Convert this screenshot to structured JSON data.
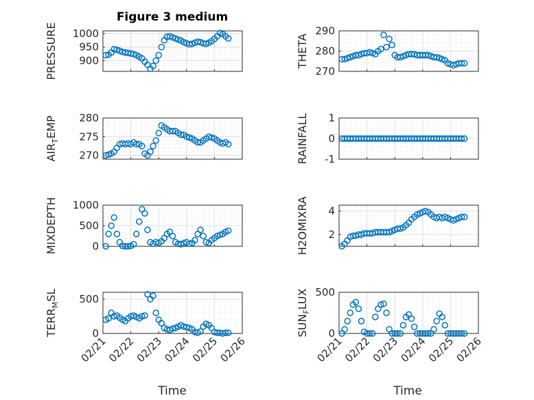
{
  "figure": {
    "title": "Figure 3 medium",
    "x_axis_label": "Time",
    "x_tick_labels": [
      "02/21",
      "02/22",
      "02/23",
      "02/24",
      "02/25",
      "02/26"
    ],
    "marker_color": "#0072BD",
    "grid": true
  },
  "chart_data": [
    {
      "type": "scatter",
      "title": "Figure 3 medium",
      "ylabel": "PRESSURE",
      "ylim": [
        860,
        1010
      ],
      "yticks": [
        900,
        950,
        1000
      ],
      "xlim": [
        0,
        5
      ],
      "x": [
        0.1,
        0.2,
        0.3,
        0.4,
        0.5,
        0.6,
        0.7,
        0.8,
        0.9,
        1.0,
        1.1,
        1.2,
        1.3,
        1.4,
        1.5,
        1.6,
        1.7,
        1.8,
        1.9,
        2.0,
        2.1,
        2.2,
        2.3,
        2.4,
        2.5,
        2.6,
        2.7,
        2.8,
        2.9,
        3.0,
        3.1,
        3.2,
        3.3,
        3.4,
        3.5,
        3.6,
        3.7,
        3.8,
        3.9,
        4.0,
        4.1,
        4.2,
        4.3,
        4.4,
        4.5
      ],
      "y": [
        920,
        922,
        930,
        942,
        940,
        936,
        932,
        930,
        928,
        926,
        924,
        920,
        914,
        908,
        896,
        884,
        870,
        880,
        900,
        920,
        950,
        975,
        988,
        990,
        986,
        982,
        978,
        974,
        968,
        964,
        960,
        962,
        966,
        970,
        968,
        964,
        962,
        966,
        972,
        980,
        990,
        1002,
        998,
        990,
        982
      ]
    },
    {
      "type": "scatter",
      "title": "",
      "ylabel": "THETA",
      "ylim": [
        270,
        290
      ],
      "yticks": [
        270,
        280,
        290
      ],
      "xlim": [
        0,
        5
      ],
      "x": [
        0.1,
        0.2,
        0.3,
        0.4,
        0.5,
        0.6,
        0.7,
        0.8,
        0.9,
        1.0,
        1.1,
        1.2,
        1.3,
        1.4,
        1.5,
        1.6,
        1.7,
        1.8,
        1.9,
        2.0,
        2.1,
        2.2,
        2.3,
        2.4,
        2.5,
        2.6,
        2.7,
        2.8,
        2.9,
        3.0,
        3.1,
        3.2,
        3.3,
        3.4,
        3.5,
        3.6,
        3.7,
        3.8,
        3.9,
        4.0,
        4.1,
        4.2,
        4.3,
        4.4,
        4.5
      ],
      "y": [
        276,
        276,
        276.5,
        277,
        277.5,
        278,
        278,
        278.5,
        279,
        279,
        279.5,
        279,
        278.5,
        280,
        281,
        288,
        282,
        286,
        283,
        278,
        277,
        277,
        277.5,
        278,
        278.5,
        278.5,
        278.5,
        278,
        278,
        278,
        278,
        278,
        277.5,
        277,
        277,
        276.5,
        276,
        275.5,
        274,
        273.5,
        273,
        273.5,
        274,
        274,
        274
      ]
    },
    {
      "type": "scatter",
      "title": "",
      "ylabel": "AIR_TEMP",
      "ylim": [
        269,
        280
      ],
      "yticks": [
        270,
        275,
        280
      ],
      "xlim": [
        0,
        5
      ],
      "x": [
        0.1,
        0.2,
        0.3,
        0.4,
        0.5,
        0.6,
        0.7,
        0.8,
        0.9,
        1.0,
        1.1,
        1.2,
        1.3,
        1.4,
        1.5,
        1.6,
        1.7,
        1.8,
        1.9,
        2.0,
        2.1,
        2.2,
        2.3,
        2.4,
        2.5,
        2.6,
        2.7,
        2.8,
        2.9,
        3.0,
        3.1,
        3.2,
        3.3,
        3.4,
        3.5,
        3.6,
        3.7,
        3.8,
        3.9,
        4.0,
        4.1,
        4.2,
        4.3,
        4.4,
        4.5
      ],
      "y": [
        270,
        270.2,
        270.5,
        271,
        272,
        273,
        273.2,
        273,
        273.2,
        273,
        273.5,
        273,
        273,
        272.5,
        270.5,
        270,
        271,
        272.5,
        274,
        276,
        278,
        277.5,
        277,
        276.5,
        276.5,
        276.5,
        276,
        275.5,
        275.5,
        275,
        274.8,
        274.5,
        274,
        273.5,
        273.5,
        274,
        274.5,
        275,
        274.8,
        274.5,
        274,
        273.5,
        273.2,
        273.5,
        273
      ]
    },
    {
      "type": "scatter",
      "title": "",
      "ylabel": "RAINFALL",
      "ylim": [
        -1,
        1
      ],
      "yticks": [
        -1,
        0,
        1
      ],
      "xlim": [
        0,
        5
      ],
      "x": [
        0.1,
        0.2,
        0.3,
        0.4,
        0.5,
        0.6,
        0.7,
        0.8,
        0.9,
        1.0,
        1.1,
        1.2,
        1.3,
        1.4,
        1.5,
        1.6,
        1.7,
        1.8,
        1.9,
        2.0,
        2.1,
        2.2,
        2.3,
        2.4,
        2.5,
        2.6,
        2.7,
        2.8,
        2.9,
        3.0,
        3.1,
        3.2,
        3.3,
        3.4,
        3.5,
        3.6,
        3.7,
        3.8,
        3.9,
        4.0,
        4.1,
        4.2,
        4.3,
        4.4,
        4.5
      ],
      "y": [
        0,
        0,
        0,
        0,
        0,
        0,
        0,
        0,
        0,
        0,
        0,
        0,
        0,
        0,
        0,
        0,
        0,
        0,
        0,
        0,
        0,
        0,
        0,
        0,
        0,
        0,
        0,
        0,
        0,
        0,
        0,
        0,
        0,
        0,
        0,
        0,
        0,
        0,
        0,
        0,
        0,
        0,
        0,
        0,
        0
      ]
    },
    {
      "type": "scatter",
      "title": "",
      "ylabel": "MIXDEPTH",
      "ylim": [
        0,
        1000
      ],
      "yticks": [
        0,
        500,
        1000
      ],
      "xlim": [
        0,
        5
      ],
      "x": [
        0.1,
        0.2,
        0.3,
        0.4,
        0.5,
        0.6,
        0.7,
        0.8,
        0.9,
        1.0,
        1.1,
        1.2,
        1.3,
        1.4,
        1.5,
        1.6,
        1.7,
        1.8,
        1.9,
        2.0,
        2.1,
        2.2,
        2.3,
        2.4,
        2.5,
        2.6,
        2.7,
        2.8,
        2.9,
        3.0,
        3.1,
        3.2,
        3.3,
        3.4,
        3.5,
        3.6,
        3.7,
        3.8,
        3.9,
        4.0,
        4.1,
        4.2,
        4.3,
        4.4,
        4.5
      ],
      "y": [
        0,
        300,
        500,
        700,
        300,
        100,
        10,
        0,
        0,
        10,
        50,
        300,
        600,
        900,
        800,
        400,
        100,
        60,
        100,
        80,
        120,
        200,
        300,
        350,
        250,
        100,
        60,
        50,
        80,
        100,
        60,
        80,
        150,
        300,
        400,
        250,
        100,
        80,
        150,
        200,
        250,
        280,
        300,
        350,
        380
      ]
    },
    {
      "type": "scatter",
      "title": "",
      "ylabel": "H2OMIXRA",
      "ylim": [
        1,
        4.5
      ],
      "yticks": [
        2,
        4
      ],
      "xlim": [
        0,
        5
      ],
      "x": [
        0.1,
        0.2,
        0.3,
        0.4,
        0.5,
        0.6,
        0.7,
        0.8,
        0.9,
        1.0,
        1.1,
        1.2,
        1.3,
        1.4,
        1.5,
        1.6,
        1.7,
        1.8,
        1.9,
        2.0,
        2.1,
        2.2,
        2.3,
        2.4,
        2.5,
        2.6,
        2.7,
        2.8,
        2.9,
        3.0,
        3.1,
        3.2,
        3.3,
        3.4,
        3.5,
        3.6,
        3.7,
        3.8,
        3.9,
        4.0,
        4.1,
        4.2,
        4.3,
        4.4,
        4.5
      ],
      "y": [
        1,
        1.2,
        1.5,
        1.8,
        1.9,
        1.9,
        2.0,
        2.0,
        2.1,
        2.1,
        2.1,
        2.1,
        2.2,
        2.2,
        2.2,
        2.2,
        2.2,
        2.2,
        2.3,
        2.4,
        2.5,
        2.5,
        2.6,
        2.8,
        3.0,
        3.3,
        3.5,
        3.7,
        3.8,
        3.9,
        4.0,
        3.9,
        3.7,
        3.5,
        3.4,
        3.5,
        3.4,
        3.5,
        3.4,
        3.3,
        3.2,
        3.3,
        3.4,
        3.5,
        3.5
      ]
    },
    {
      "type": "scatter",
      "title": "",
      "ylabel": "TERR_MSL",
      "ylim": [
        0,
        600
      ],
      "yticks": [
        0,
        500
      ],
      "xlim": [
        0,
        5
      ],
      "x": [
        0.1,
        0.2,
        0.3,
        0.4,
        0.5,
        0.6,
        0.7,
        0.8,
        0.9,
        1.0,
        1.1,
        1.2,
        1.3,
        1.4,
        1.5,
        1.6,
        1.7,
        1.8,
        1.9,
        2.0,
        2.1,
        2.2,
        2.3,
        2.4,
        2.5,
        2.6,
        2.7,
        2.8,
        2.9,
        3.0,
        3.1,
        3.2,
        3.3,
        3.4,
        3.5,
        3.6,
        3.7,
        3.8,
        3.9,
        4.0,
        4.1,
        4.2,
        4.3,
        4.4,
        4.5
      ],
      "y": [
        200,
        220,
        300,
        250,
        260,
        230,
        200,
        180,
        220,
        250,
        260,
        240,
        220,
        250,
        260,
        570,
        500,
        550,
        300,
        200,
        150,
        80,
        60,
        50,
        70,
        80,
        100,
        120,
        100,
        90,
        80,
        60,
        20,
        10,
        30,
        100,
        140,
        120,
        80,
        20,
        10,
        10,
        0,
        10,
        10
      ]
    },
    {
      "type": "scatter",
      "title": "",
      "ylabel": "SUN_FLUX",
      "ylim": [
        0,
        500
      ],
      "yticks": [
        0,
        500
      ],
      "xlim": [
        0,
        5
      ],
      "x": [
        0.1,
        0.2,
        0.3,
        0.4,
        0.5,
        0.6,
        0.7,
        0.8,
        0.9,
        1.0,
        1.1,
        1.2,
        1.3,
        1.4,
        1.5,
        1.6,
        1.7,
        1.8,
        1.9,
        2.0,
        2.1,
        2.2,
        2.3,
        2.4,
        2.5,
        2.6,
        2.7,
        2.8,
        2.9,
        3.0,
        3.1,
        3.2,
        3.3,
        3.4,
        3.5,
        3.6,
        3.7,
        3.8,
        3.9,
        4.0,
        4.1,
        4.2,
        4.3,
        4.4,
        4.5
      ],
      "y": [
        0,
        50,
        150,
        250,
        350,
        380,
        300,
        150,
        20,
        0,
        0,
        0,
        200,
        300,
        350,
        360,
        250,
        50,
        0,
        0,
        0,
        0,
        100,
        200,
        230,
        180,
        80,
        0,
        0,
        0,
        0,
        0,
        0,
        50,
        150,
        240,
        200,
        100,
        0,
        0,
        0,
        0,
        0,
        0,
        0
      ]
    }
  ]
}
